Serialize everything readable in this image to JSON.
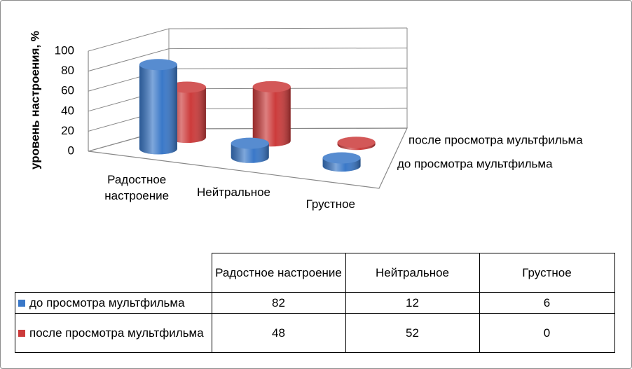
{
  "chart_data": {
    "type": "cylinder3d",
    "y_label": "уровень настроения, %",
    "categories": [
      "Радостное настроение",
      "Нейтральное",
      "Грустное"
    ],
    "series": [
      {
        "name": "до просмотра мультфильма",
        "color": "#3a78c8",
        "values": [
          82,
          12,
          6
        ]
      },
      {
        "name": "после просмотра мультфильма",
        "color": "#cc3b3b",
        "values": [
          48,
          52,
          0
        ]
      }
    ],
    "ylim": [
      0,
      100
    ],
    "yticks": [
      0,
      20,
      40,
      60,
      80,
      100
    ],
    "grid": true
  }
}
